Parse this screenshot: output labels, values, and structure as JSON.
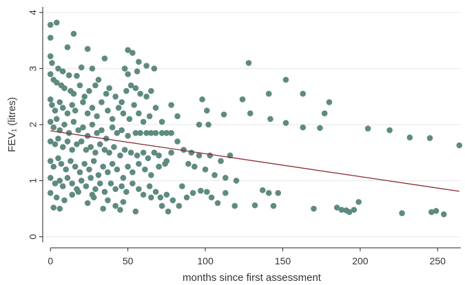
{
  "chart_data": {
    "type": "scatter",
    "xlabel": "months since first assessment",
    "ylabel": "FEV₁ (litres)",
    "xlim": [
      -5,
      265
    ],
    "ylim": [
      -0.1,
      4.1
    ],
    "xticks": [
      "0",
      "50",
      "100",
      "150",
      "200",
      "250"
    ],
    "yticks": [
      "0",
      "1",
      "2",
      "3",
      "4"
    ],
    "grid": "horizontal",
    "colors": {
      "points": "#5f8a80",
      "fit_line": "#8b2a33"
    },
    "fit_line": {
      "x": [
        0,
        264
      ],
      "y": [
        1.89,
        0.81
      ]
    },
    "points": [
      [
        0,
        3.78
      ],
      [
        4,
        3.82
      ],
      [
        15,
        3.62
      ],
      [
        0,
        3.55
      ],
      [
        11,
        3.38
      ],
      [
        24,
        3.35
      ],
      [
        50,
        3.33
      ],
      [
        53,
        3.28
      ],
      [
        57,
        3.12
      ],
      [
        62,
        3.05
      ],
      [
        67,
        3.0
      ],
      [
        0,
        3.22
      ],
      [
        1,
        3.1
      ],
      [
        8,
        2.95
      ],
      [
        12,
        2.88
      ],
      [
        17,
        2.87
      ],
      [
        20,
        3.02
      ],
      [
        27,
        3.0
      ],
      [
        35,
        3.18
      ],
      [
        48,
        3.0
      ],
      [
        50,
        2.9
      ],
      [
        56,
        2.95
      ],
      [
        5,
        3.0
      ],
      [
        0,
        2.9
      ],
      [
        2,
        2.8
      ],
      [
        4,
        2.75
      ],
      [
        7,
        2.7
      ],
      [
        9,
        2.65
      ],
      [
        13,
        2.6
      ],
      [
        15,
        2.55
      ],
      [
        19,
        2.7
      ],
      [
        22,
        2.5
      ],
      [
        25,
        2.6
      ],
      [
        29,
        2.7
      ],
      [
        31,
        2.8
      ],
      [
        36,
        2.55
      ],
      [
        38,
        2.65
      ],
      [
        42,
        2.5
      ],
      [
        46,
        2.4
      ],
      [
        49,
        2.6
      ],
      [
        52,
        2.7
      ],
      [
        55,
        2.65
      ],
      [
        58,
        2.55
      ],
      [
        62,
        2.5
      ],
      [
        65,
        2.6
      ],
      [
        0,
        2.45
      ],
      [
        1,
        2.35
      ],
      [
        3,
        2.25
      ],
      [
        6,
        2.4
      ],
      [
        8,
        2.3
      ],
      [
        11,
        2.2
      ],
      [
        14,
        2.35
      ],
      [
        16,
        2.25
      ],
      [
        21,
        2.4
      ],
      [
        24,
        2.2
      ],
      [
        27,
        2.3
      ],
      [
        30,
        2.15
      ],
      [
        33,
        2.4
      ],
      [
        37,
        2.25
      ],
      [
        40,
        2.1
      ],
      [
        44,
        2.3
      ],
      [
        47,
        2.2
      ],
      [
        51,
        2.1
      ],
      [
        54,
        2.35
      ],
      [
        57,
        2.2
      ],
      [
        60,
        2.05
      ],
      [
        64,
        2.15
      ],
      [
        68,
        2.3
      ],
      [
        72,
        2.05
      ],
      [
        78,
        2.35
      ],
      [
        0,
        2.05
      ],
      [
        2,
        1.95
      ],
      [
        4,
        2.1
      ],
      [
        6,
        1.9
      ],
      [
        9,
        2.0
      ],
      [
        12,
        1.85
      ],
      [
        15,
        2.05
      ],
      [
        18,
        1.9
      ],
      [
        21,
        1.95
      ],
      [
        24,
        1.8
      ],
      [
        27,
        2.0
      ],
      [
        30,
        1.85
      ],
      [
        33,
        1.9
      ],
      [
        36,
        1.75
      ],
      [
        40,
        1.95
      ],
      [
        43,
        1.85
      ],
      [
        46,
        1.9
      ],
      [
        50,
        1.8
      ],
      [
        55,
        1.85
      ],
      [
        58,
        1.85
      ],
      [
        62,
        1.85
      ],
      [
        65,
        1.85
      ],
      [
        68,
        1.85
      ],
      [
        72,
        1.85
      ],
      [
        75,
        1.85
      ],
      [
        78,
        1.85
      ],
      [
        0,
        1.7
      ],
      [
        3,
        1.65
      ],
      [
        5,
        1.75
      ],
      [
        8,
        1.6
      ],
      [
        11,
        1.7
      ],
      [
        14,
        1.55
      ],
      [
        17,
        1.65
      ],
      [
        20,
        1.7
      ],
      [
        23,
        1.55
      ],
      [
        26,
        1.6
      ],
      [
        29,
        1.5
      ],
      [
        32,
        1.65
      ],
      [
        35,
        1.55
      ],
      [
        38,
        1.5
      ],
      [
        41,
        1.6
      ],
      [
        45,
        1.45
      ],
      [
        48,
        1.55
      ],
      [
        52,
        1.5
      ],
      [
        56,
        1.45
      ],
      [
        60,
        1.5
      ],
      [
        63,
        1.4
      ],
      [
        67,
        1.5
      ],
      [
        70,
        1.45
      ],
      [
        74,
        1.3
      ],
      [
        78,
        1.5
      ],
      [
        0,
        1.35
      ],
      [
        2,
        1.25
      ],
      [
        5,
        1.4
      ],
      [
        7,
        1.3
      ],
      [
        10,
        1.2
      ],
      [
        13,
        1.35
      ],
      [
        16,
        1.25
      ],
      [
        19,
        1.15
      ],
      [
        22,
        1.3
      ],
      [
        25,
        1.2
      ],
      [
        28,
        1.35
      ],
      [
        31,
        1.1
      ],
      [
        34,
        1.25
      ],
      [
        37,
        1.15
      ],
      [
        40,
        1.3
      ],
      [
        43,
        1.2
      ],
      [
        47,
        1.05
      ],
      [
        50,
        1.25
      ],
      [
        53,
        1.15
      ],
      [
        57,
        1.3
      ],
      [
        61,
        1.2
      ],
      [
        65,
        1.1
      ],
      [
        70,
        1.25
      ],
      [
        75,
        1.35
      ],
      [
        0,
        1.05
      ],
      [
        3,
        0.95
      ],
      [
        6,
        1.0
      ],
      [
        8,
        0.9
      ],
      [
        11,
        1.05
      ],
      [
        14,
        0.95
      ],
      [
        17,
        0.85
      ],
      [
        20,
        1.0
      ],
      [
        23,
        0.9
      ],
      [
        26,
        1.05
      ],
      [
        29,
        0.85
      ],
      [
        32,
        0.95
      ],
      [
        35,
        0.8
      ],
      [
        39,
        0.95
      ],
      [
        42,
        0.85
      ],
      [
        46,
        0.9
      ],
      [
        49,
        0.8
      ],
      [
        53,
        0.95
      ],
      [
        57,
        0.85
      ],
      [
        60,
        0.75
      ],
      [
        64,
        0.9
      ],
      [
        68,
        0.8
      ],
      [
        71,
        0.7
      ],
      [
        75,
        0.75
      ],
      [
        79,
        0.65
      ],
      [
        0,
        0.78
      ],
      [
        4,
        0.7
      ],
      [
        9,
        0.65
      ],
      [
        14,
        0.75
      ],
      [
        18,
        0.8
      ],
      [
        24,
        0.6
      ],
      [
        28,
        0.7
      ],
      [
        34,
        0.5
      ],
      [
        37,
        0.65
      ],
      [
        42,
        0.55
      ],
      [
        47,
        0.62
      ],
      [
        55,
        0.45
      ],
      [
        65,
        0.7
      ],
      [
        72,
        0.55
      ],
      [
        83,
        0.55
      ],
      [
        2,
        0.52
      ],
      [
        6,
        0.5
      ],
      [
        27,
        0.75
      ],
      [
        45,
        0.48
      ],
      [
        76,
        0.45
      ],
      [
        82,
        1.7
      ],
      [
        86,
        1.55
      ],
      [
        89,
        1.3
      ],
      [
        91,
        1.5
      ],
      [
        93,
        1.25
      ],
      [
        96,
        1.45
      ],
      [
        100,
        1.2
      ],
      [
        103,
        1.45
      ],
      [
        106,
        1.1
      ],
      [
        110,
        1.35
      ],
      [
        113,
        1.05
      ],
      [
        116,
        1.45
      ],
      [
        120,
        1.0
      ],
      [
        82,
        2.15
      ],
      [
        96,
        2.0
      ],
      [
        98,
        2.45
      ],
      [
        101,
        2.25
      ],
      [
        102,
        2.0
      ],
      [
        112,
        2.18
      ],
      [
        124,
        2.45
      ],
      [
        128,
        3.1
      ],
      [
        129,
        2.2
      ],
      [
        141,
        2.55
      ],
      [
        142,
        2.1
      ],
      [
        152,
        2.8
      ],
      [
        152,
        2.03
      ],
      [
        163,
        2.55
      ],
      [
        163,
        1.95
      ],
      [
        174,
        1.94
      ],
      [
        177,
        2.2
      ],
      [
        180,
        2.4
      ],
      [
        85,
        0.9
      ],
      [
        88,
        0.7
      ],
      [
        92,
        0.78
      ],
      [
        97,
        0.82
      ],
      [
        101,
        0.8
      ],
      [
        104,
        0.7
      ],
      [
        108,
        0.6
      ],
      [
        113,
        0.78
      ],
      [
        119,
        0.55
      ],
      [
        132,
        0.56
      ],
      [
        137,
        0.83
      ],
      [
        141,
        0.78
      ],
      [
        144,
        0.55
      ],
      [
        147,
        0.78
      ],
      [
        170,
        0.5
      ],
      [
        185,
        0.52
      ],
      [
        188,
        0.48
      ],
      [
        191,
        0.47
      ],
      [
        193,
        0.44
      ],
      [
        196,
        0.48
      ],
      [
        199,
        0.62
      ],
      [
        227,
        0.42
      ],
      [
        246,
        0.44
      ],
      [
        249,
        0.46
      ],
      [
        254,
        0.4
      ],
      [
        205,
        1.93
      ],
      [
        219,
        1.9
      ],
      [
        232,
        1.77
      ],
      [
        245,
        1.76
      ],
      [
        264,
        1.63
      ]
    ]
  }
}
